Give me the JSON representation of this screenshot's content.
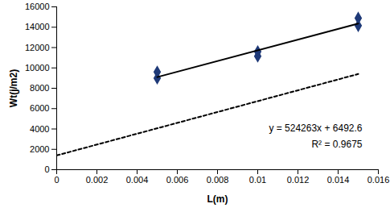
{
  "chart_data": {
    "type": "scatter",
    "x_label": "L(m)",
    "y_label": "Wt(j/m2)",
    "xlim": [
      0,
      0.016
    ],
    "xticks": [
      0,
      0.002,
      0.004,
      0.006,
      0.008,
      0.01,
      0.012,
      0.014,
      0.016
    ],
    "ylim": [
      0,
      16000
    ],
    "yticks": [
      0,
      2000,
      4000,
      6000,
      8000,
      10000,
      12000,
      14000,
      16000
    ],
    "grid": false,
    "annotations": [
      "y = 524263x + 6492.6",
      "R² = 0.9675"
    ],
    "series": [
      {
        "type": "scatter",
        "marker": "diamond",
        "color": "#1f3a78",
        "x": [
          0.005,
          0.005,
          0.01,
          0.01,
          0.015,
          0.015
        ],
        "values": [
          9600,
          9000,
          11600,
          11150,
          14900,
          14150
        ]
      },
      {
        "type": "line",
        "line_style": "solid",
        "color": "#000000",
        "x": [
          0.005,
          0.015
        ],
        "values": [
          9100,
          14350
        ]
      },
      {
        "type": "line",
        "line_style": "dashed",
        "color": "#000000",
        "x": [
          0,
          0.015
        ],
        "values": [
          1400,
          9400
        ]
      }
    ]
  }
}
